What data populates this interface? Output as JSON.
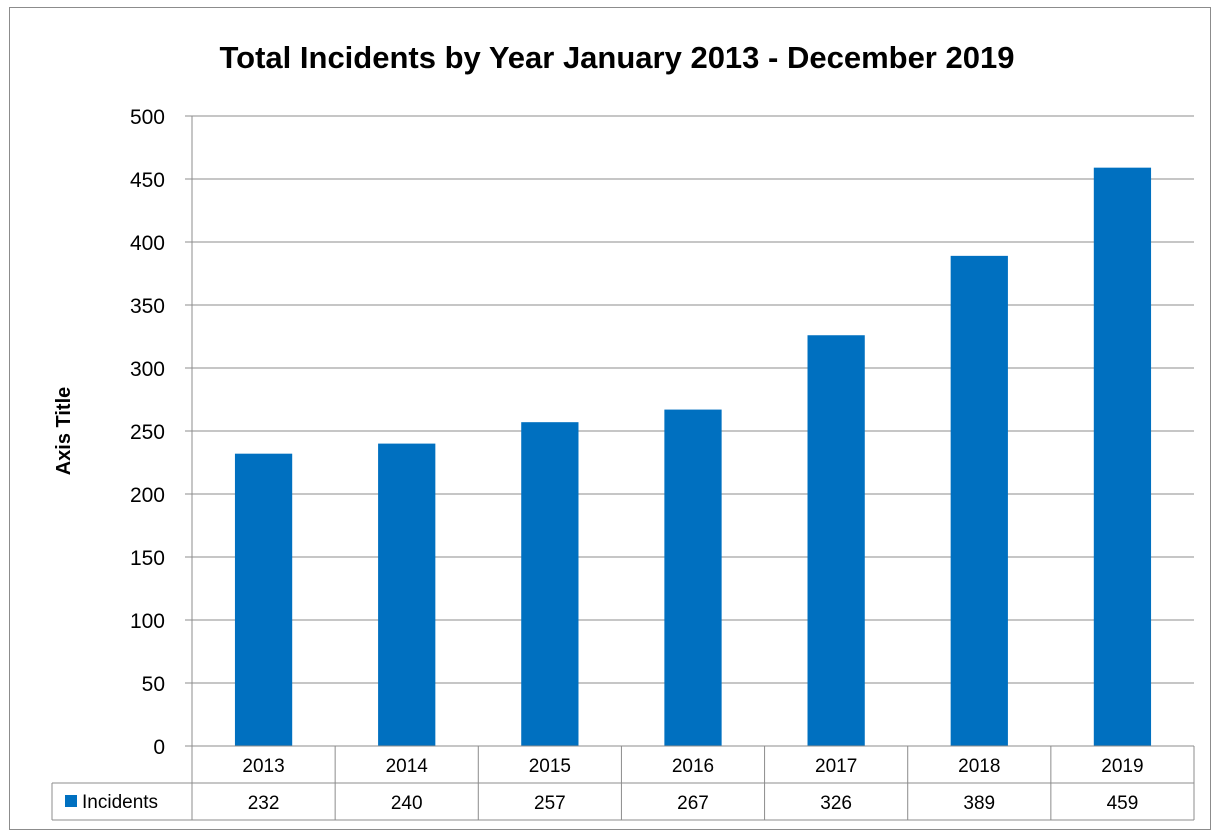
{
  "chart_data": {
    "type": "bar",
    "title": "Total Incidents by Year January 2013 - December 2019",
    "xlabel": "",
    "ylabel": "Axis Title",
    "categories": [
      "2013",
      "2014",
      "2015",
      "2016",
      "2017",
      "2018",
      "2019"
    ],
    "series": [
      {
        "name": "Incidents",
        "values": [
          232,
          240,
          257,
          267,
          326,
          389,
          459
        ],
        "color": "#0070c0"
      }
    ],
    "ylim": [
      0,
      500
    ],
    "yticks": [
      0,
      50,
      100,
      150,
      200,
      250,
      300,
      350,
      400,
      450,
      500
    ],
    "grid": true,
    "legend": "data-table",
    "data_table": true
  }
}
